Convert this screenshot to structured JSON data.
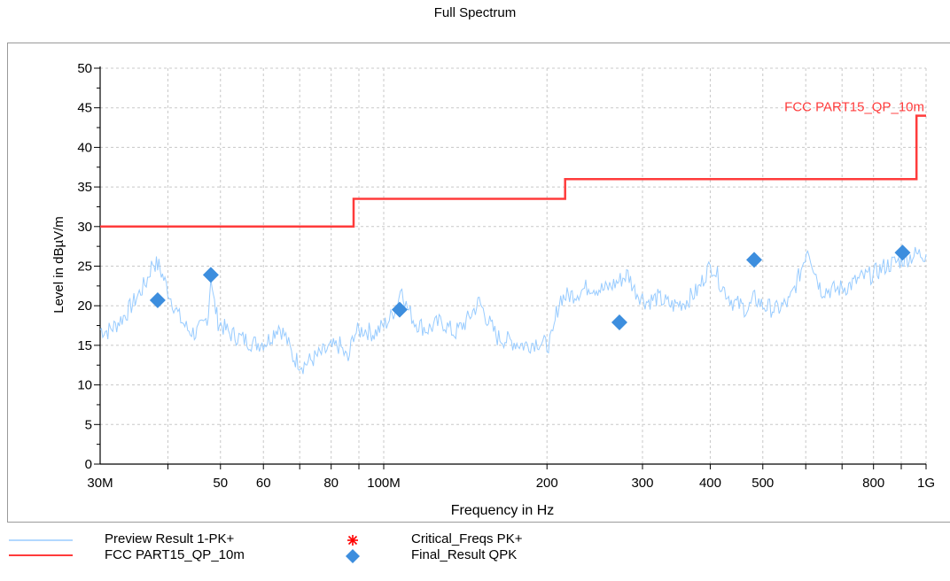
{
  "chart_data": {
    "type": "line",
    "title": "Full Spectrum",
    "xlabel": "Frequency in Hz",
    "ylabel": "Level in dBµV/m",
    "x_scale": "log",
    "xlim": [
      30000000,
      1000000000
    ],
    "ylim": [
      0,
      50
    ],
    "grid": true,
    "y_ticks": [
      0,
      5,
      10,
      15,
      20,
      25,
      30,
      35,
      40,
      45,
      50
    ],
    "x_ticks": [
      {
        "value": 30000000,
        "label": "30M"
      },
      {
        "value": 50000000,
        "label": "50"
      },
      {
        "value": 60000000,
        "label": "60"
      },
      {
        "value": 80000000,
        "label": "80"
      },
      {
        "value": 100000000,
        "label": "100M"
      },
      {
        "value": 200000000,
        "label": "200"
      },
      {
        "value": 300000000,
        "label": "300"
      },
      {
        "value": 400000000,
        "label": "400"
      },
      {
        "value": 500000000,
        "label": "500"
      },
      {
        "value": 800000000,
        "label": "800"
      },
      {
        "value": 1000000000,
        "label": "1G"
      }
    ],
    "series": [
      {
        "name": "Preview Result 1-PK+",
        "color": "#99ccff",
        "style": "line",
        "points": [
          [
            30000000,
            17
          ],
          [
            31000000,
            16.8
          ],
          [
            32000000,
            17.5
          ],
          [
            33500000,
            19
          ],
          [
            35000000,
            21
          ],
          [
            36500000,
            23
          ],
          [
            37500000,
            25.5
          ],
          [
            38500000,
            25
          ],
          [
            39500000,
            23
          ],
          [
            40500000,
            21
          ],
          [
            42000000,
            18.5
          ],
          [
            43500000,
            17
          ],
          [
            45000000,
            16.5
          ],
          [
            46500000,
            17.5
          ],
          [
            47500000,
            19
          ],
          [
            48000000,
            24
          ],
          [
            48500000,
            21
          ],
          [
            49500000,
            18
          ],
          [
            52000000,
            16.5
          ],
          [
            55000000,
            15.8
          ],
          [
            58000000,
            15.2
          ],
          [
            61000000,
            15.5
          ],
          [
            64000000,
            17.5
          ],
          [
            66000000,
            16
          ],
          [
            68000000,
            13.5
          ],
          [
            71000000,
            12.5
          ],
          [
            75000000,
            13.5
          ],
          [
            79000000,
            14.5
          ],
          [
            83000000,
            15
          ],
          [
            86000000,
            13
          ],
          [
            88000000,
            16.5
          ],
          [
            92000000,
            17
          ],
          [
            96000000,
            16.5
          ],
          [
            100000000,
            17.5
          ],
          [
            103000000,
            18.5
          ],
          [
            106000000,
            20.5
          ],
          [
            108000000,
            22.5
          ],
          [
            110000000,
            20
          ],
          [
            114000000,
            18
          ],
          [
            120000000,
            17
          ],
          [
            128000000,
            18
          ],
          [
            135000000,
            16.5
          ],
          [
            142000000,
            18
          ],
          [
            150000000,
            20.5
          ],
          [
            156000000,
            18
          ],
          [
            162000000,
            16
          ],
          [
            172000000,
            15.5
          ],
          [
            182000000,
            15
          ],
          [
            192000000,
            15.5
          ],
          [
            200000000,
            15
          ],
          [
            205000000,
            16
          ],
          [
            208000000,
            19
          ],
          [
            212000000,
            21
          ],
          [
            225000000,
            21.5
          ],
          [
            240000000,
            22.5
          ],
          [
            255000000,
            22
          ],
          [
            270000000,
            23
          ],
          [
            282000000,
            24
          ],
          [
            290000000,
            22
          ],
          [
            305000000,
            20.5
          ],
          [
            320000000,
            21
          ],
          [
            340000000,
            20
          ],
          [
            360000000,
            20.5
          ],
          [
            380000000,
            22
          ],
          [
            395000000,
            24.5
          ],
          [
            405000000,
            25
          ],
          [
            420000000,
            22.5
          ],
          [
            440000000,
            20.5
          ],
          [
            470000000,
            19.5
          ],
          [
            483000000,
            21
          ],
          [
            500000000,
            20
          ],
          [
            530000000,
            19.5
          ],
          [
            560000000,
            20.5
          ],
          [
            585000000,
            24
          ],
          [
            605000000,
            27.5
          ],
          [
            620000000,
            25
          ],
          [
            640000000,
            22
          ],
          [
            680000000,
            22
          ],
          [
            720000000,
            22.5
          ],
          [
            760000000,
            23.5
          ],
          [
            800000000,
            24
          ],
          [
            840000000,
            25
          ],
          [
            880000000,
            25.5
          ],
          [
            920000000,
            26
          ],
          [
            960000000,
            26.5
          ],
          [
            1000000000,
            26.5
          ]
        ]
      },
      {
        "name": "FCC PART15_QP_10m",
        "color": "#ff3b3b",
        "style": "step",
        "label": "FCC PART15_QP_10m",
        "points": [
          [
            30000000,
            30
          ],
          [
            88000000,
            30
          ],
          [
            88000000,
            33.5
          ],
          [
            216000000,
            33.5
          ],
          [
            216000000,
            36
          ],
          [
            960000000,
            36
          ],
          [
            960000000,
            44
          ],
          [
            1000000000,
            44
          ]
        ]
      },
      {
        "name": "Critical_Freqs PK+",
        "color": "#ff0000",
        "style": "marker-star",
        "points": []
      },
      {
        "name": "Final_Result QPK",
        "color": "#3d8ede",
        "style": "marker-diamond",
        "points": [
          [
            38300000,
            20.7
          ],
          [
            48000000,
            23.9
          ],
          [
            107000000,
            19.5
          ],
          [
            272000000,
            17.9
          ],
          [
            482000000,
            25.8
          ],
          [
            905000000,
            26.7
          ]
        ]
      }
    ],
    "legend": {
      "placement": "bottom",
      "entries": [
        {
          "label": "Preview Result 1-PK+",
          "symbol": "line",
          "color": "#99ccff"
        },
        {
          "label": "FCC PART15_QP_10m",
          "symbol": "line",
          "color": "#ff3b3b"
        },
        {
          "label": "Critical_Freqs PK+",
          "symbol": "star",
          "color": "#ff0000"
        },
        {
          "label": "Final_Result QPK",
          "symbol": "diamond",
          "color": "#3d8ede"
        }
      ]
    }
  }
}
